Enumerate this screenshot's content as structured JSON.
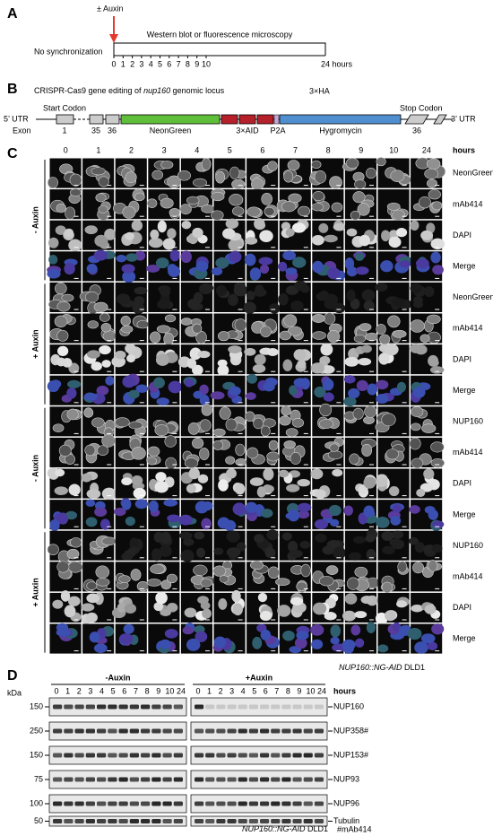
{
  "panel_a": {
    "label": "A",
    "treatment": "± Auxin",
    "condition": "No synchronization",
    "assay": "Western blot or fluorescence microscopy",
    "timepoints": [
      "0",
      "1",
      "2",
      "3",
      "4",
      "5",
      "6",
      "7",
      "8",
      "9",
      "10"
    ],
    "end": "24 hours"
  },
  "panel_b": {
    "label": "B",
    "title": [
      "CRISPR-Cas9 gene editing of ",
      "nup160",
      " genomic locus"
    ],
    "tag": "3×HA",
    "start": "Start Codon",
    "stop": "Stop Codon",
    "utr5": "5’ UTR",
    "utr3": "3’ UTR",
    "exon": "Exon",
    "exon_numbers": [
      "1",
      "35",
      "36"
    ],
    "elements": [
      "NeonGreen",
      "3×AID",
      "P2A",
      "Hygromycin"
    ],
    "last_exon": "36"
  },
  "panel_c": {
    "label": "C",
    "columns": [
      "0",
      "1",
      "2",
      "3",
      "4",
      "5",
      "6",
      "7",
      "8",
      "9",
      "10",
      "24"
    ],
    "unit": "hours",
    "groups": [
      {
        "treatment": "- Auxin",
        "rows": [
          "NeonGreen",
          "mAb414",
          "DAPI",
          "Merge"
        ]
      },
      {
        "treatment": "+ Auxin",
        "rows": [
          "NeonGreen",
          "mAb414",
          "DAPI",
          "Merge"
        ]
      },
      {
        "treatment": "- Auxin",
        "rows": [
          "NUP160",
          "mAb414",
          "DAPI",
          "Merge"
        ]
      },
      {
        "treatment": "+ Auxin",
        "rows": [
          "NUP160",
          "mAb414",
          "DAPI",
          "Merge"
        ]
      }
    ],
    "strain": [
      "NUP160::NG-AID",
      " DLD1"
    ]
  },
  "panel_d": {
    "label": "D",
    "kda": "kDa",
    "conditions": [
      "-Auxin",
      "+Auxin"
    ],
    "lanes": [
      "0",
      "1",
      "2",
      "3",
      "4",
      "5",
      "6",
      "7",
      "8",
      "9",
      "10",
      "24"
    ],
    "unit": "hours",
    "markers": [
      "150",
      "250",
      "150",
      "75",
      "100",
      "50"
    ],
    "proteins": [
      "NUP160",
      "NUP358#",
      "NUP153#",
      "NUP93",
      "NUP96",
      "Tubulin"
    ],
    "strain": [
      "NUP160::NG-AID",
      " DLD1"
    ],
    "note": "#mAb414"
  }
}
